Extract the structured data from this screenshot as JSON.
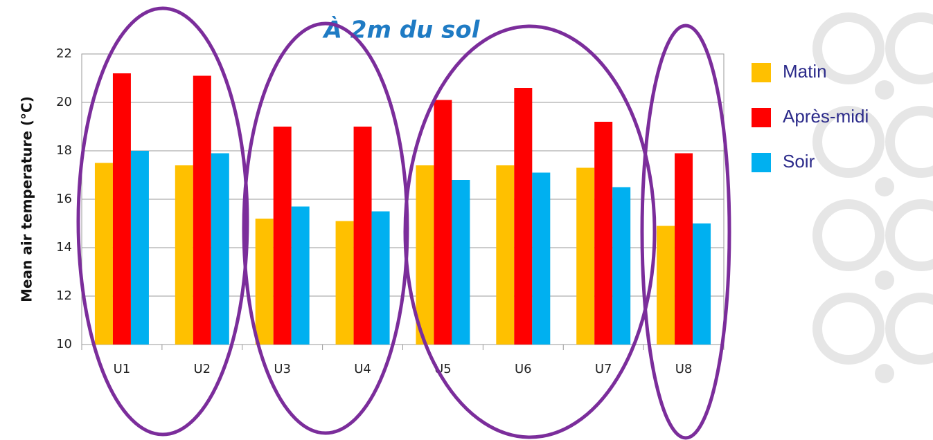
{
  "chart_data": {
    "type": "bar",
    "title": "À 2m du sol",
    "y_label": "Mean air temperature (°C)",
    "categories": [
      "U1",
      "U2",
      "U3",
      "U4",
      "U5",
      "U6",
      "U7",
      "U8"
    ],
    "series": [
      {
        "name": "Matin",
        "color": "#ffc000",
        "values": [
          17.5,
          17.4,
          15.2,
          15.1,
          17.4,
          17.4,
          17.3,
          14.9
        ]
      },
      {
        "name": "Après-midi",
        "color": "#ff0000",
        "values": [
          21.2,
          21.1,
          19.0,
          19.0,
          20.1,
          20.6,
          19.2,
          17.9
        ]
      },
      {
        "name": "Soir",
        "color": "#00b0f0",
        "values": [
          18.0,
          17.9,
          15.7,
          15.5,
          16.8,
          17.1,
          16.5,
          15.0
        ]
      }
    ],
    "ylim": [
      10,
      22
    ],
    "yticks": [
      10,
      12,
      14,
      16,
      18,
      20,
      22
    ],
    "grid": true,
    "legend": "right"
  }
}
